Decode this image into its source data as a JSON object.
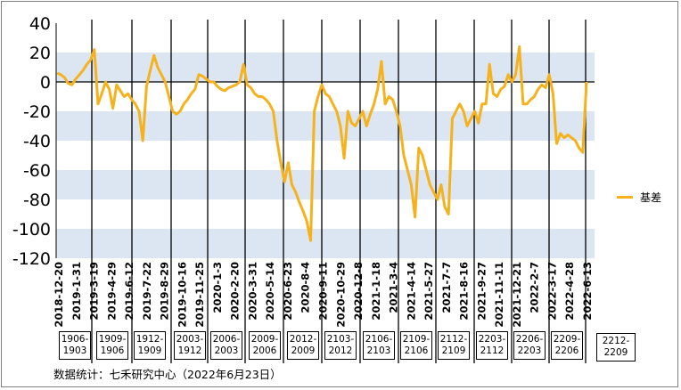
{
  "chart_data": {
    "type": "line",
    "title": "",
    "xlabel": "",
    "ylabel": "",
    "ylim": [
      -120,
      40
    ],
    "y_ticks": [
      40,
      20,
      0,
      -20,
      -40,
      -60,
      -80,
      -100,
      -120
    ],
    "grid": "horizontal alternating bands",
    "legend_position": "right",
    "x_tick_labels": [
      "2018-12-20",
      "2019-1-31",
      "2019-3-19",
      "2019-4-29",
      "2019-6-12",
      "2019-7-22",
      "2019-8-29",
      "2019-10-16",
      "2019-11-25",
      "2020-1-3",
      "2020-2-20",
      "2020-3-31",
      "2020-5-14",
      "2020-6-23",
      "2020-8-4",
      "2020-9-11",
      "2020-10-29",
      "2020-12-8",
      "2021-1-18",
      "2021-3-4",
      "2021-4-14",
      "2021-5-27",
      "2021-7-7",
      "2021-8-16",
      "2021-9-27",
      "2021-11-11",
      "2021-12-21",
      "2022-2-7",
      "2022-3-17",
      "2022-4-28",
      "2022-6-13"
    ],
    "contracts": [
      "1906-1903",
      "1909-1906",
      "1912-1909",
      "2003-1912",
      "2006-2003",
      "2009-2006",
      "2012-2009",
      "2103-2012",
      "2106-2103",
      "2109-2106",
      "2112-2109",
      "2203-2112",
      "2206-2203",
      "2209-2206",
      "2212-2209"
    ],
    "series": [
      {
        "name": "基差",
        "color": "#f5b21c",
        "values": [
          6,
          5,
          3,
          -1,
          -2,
          2,
          5,
          8,
          12,
          15,
          22,
          -15,
          -8,
          0,
          -5,
          -18,
          -2,
          -6,
          -10,
          -8,
          -12,
          -15,
          -20,
          -40,
          -3,
          8,
          18,
          10,
          5,
          0,
          -10,
          -20,
          -22,
          -20,
          -15,
          -12,
          -8,
          -5,
          5,
          4,
          2,
          0,
          0,
          -3,
          -5,
          -6,
          -4,
          -3,
          -2,
          0,
          12,
          -2,
          -4,
          -8,
          -10,
          -10,
          -12,
          -15,
          -20,
          -40,
          -55,
          -68,
          -55,
          -70,
          -75,
          -82,
          -88,
          -95,
          -108,
          -20,
          -10,
          -2,
          -8,
          -10,
          -15,
          -20,
          -30,
          -52,
          -20,
          -28,
          -30,
          -25,
          -20,
          -30,
          -22,
          -15,
          -5,
          14,
          -15,
          -10,
          -12,
          -20,
          -30,
          -50,
          -60,
          -70,
          -92,
          -45,
          -50,
          -60,
          -70,
          -75,
          -80,
          -70,
          -85,
          -90,
          -25,
          -20,
          -15,
          -20,
          -30,
          -25,
          -20,
          -28,
          -15,
          -15,
          12,
          -8,
          -10,
          -5,
          -3,
          5,
          0,
          5,
          24,
          -15,
          -15,
          -12,
          -10,
          -5,
          -2,
          -4,
          5,
          -8,
          -42,
          -35,
          -38,
          -36,
          -38,
          -40,
          -45,
          -48,
          0
        ]
      }
    ],
    "source_text": "数据统计：七禾研究中心（2022年6月23日）"
  }
}
